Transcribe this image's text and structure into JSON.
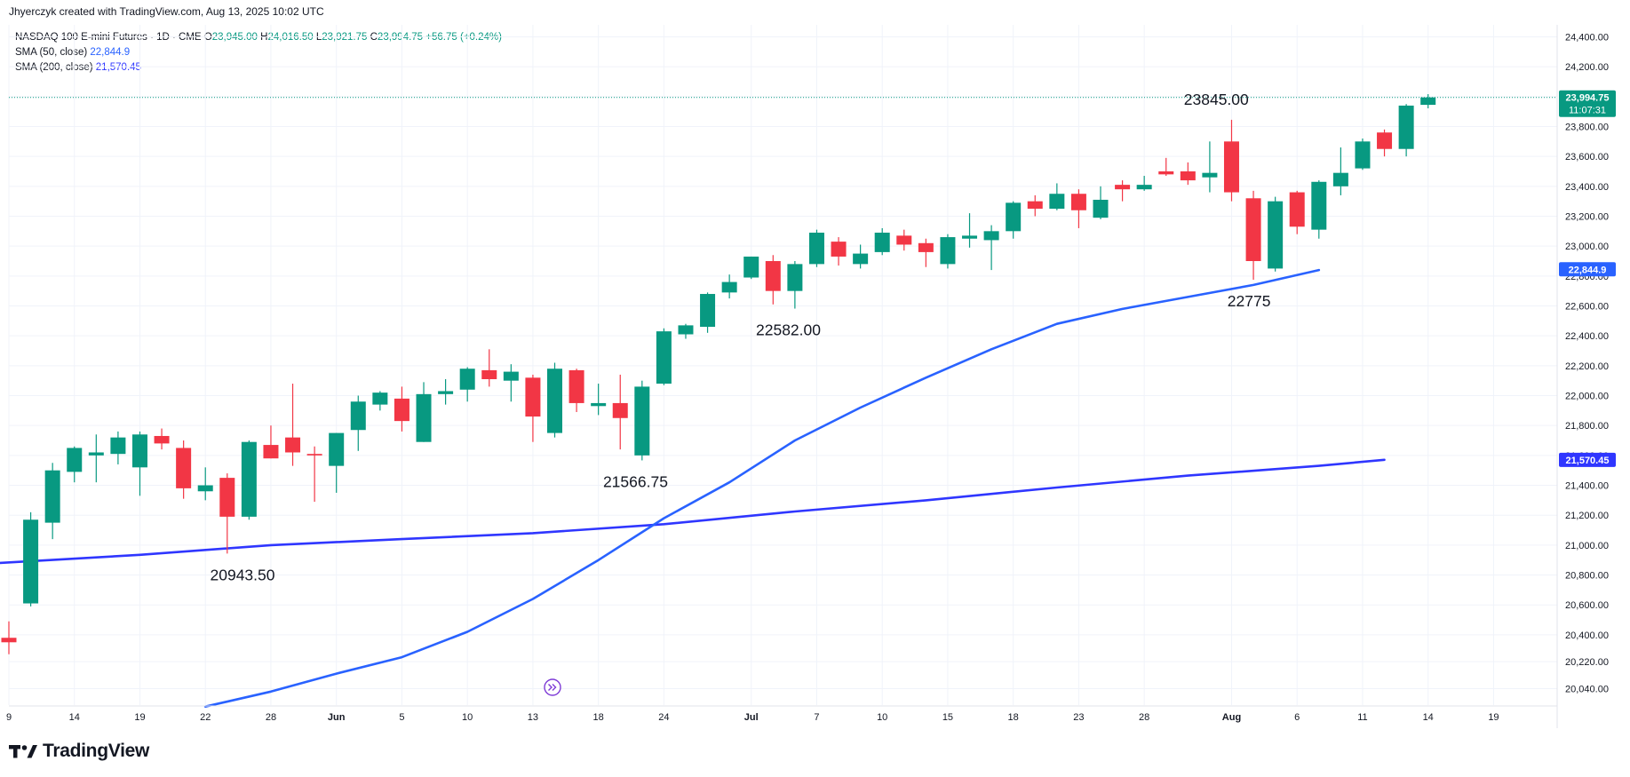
{
  "header": {
    "attribution": "Jhyerczyk created with TradingView.com, Aug 13, 2025 10:02 UTC"
  },
  "legend": {
    "symbol": "NASDAQ 100 E-mini Futures · 1D · CME",
    "o_label": "O",
    "o_value": "23,945.00",
    "h_label": "H",
    "h_value": "24,016.50",
    "l_label": "L",
    "l_value": "23,921.75",
    "c_label": "C",
    "c_value": "23,994.75",
    "change": "+56.75 (+0.24%)",
    "sma50_label": "SMA (50, close)",
    "sma50_value": "22,844.9",
    "sma200_label": "SMA (200, close)",
    "sma200_value": "21,570.45"
  },
  "footer": {
    "brand": "TradingView"
  },
  "colors": {
    "up": "#089981",
    "down": "#f23645",
    "sma50": "#2962ff",
    "sma200": "#2f36ff",
    "grid": "#f0f3fa",
    "axis_text": "#131722"
  },
  "chart_data": {
    "type": "candlestick",
    "y_axis": {
      "position": "right",
      "ticks": [
        20040,
        20220,
        20400,
        20600,
        20800,
        21000,
        21200,
        21400,
        21600,
        21800,
        22000,
        22200,
        22400,
        22600,
        22800,
        23000,
        23200,
        23400,
        23600,
        23800,
        24000,
        24200,
        24400
      ],
      "tick_labels": [
        "20,040.00",
        "20,220.00",
        "20,400.00",
        "20,600.00",
        "20,800.00",
        "21,000.00",
        "21,200.00",
        "21,400.00",
        "21,600.00",
        "21,800.00",
        "22,000.00",
        "22,200.00",
        "22,400.00",
        "22,600.00",
        "22,800.00",
        "23,000.00",
        "23,200.00",
        "23,400.00",
        "23,600.00",
        "23,800.00",
        "24,000.00",
        "24,200.00",
        "24,400.00"
      ],
      "range": [
        19930,
        24480
      ]
    },
    "x_axis": {
      "tick_labels": [
        "9",
        "14",
        "19",
        "22",
        "28",
        "Jun",
        "5",
        "10",
        "13",
        "18",
        "24",
        "Jul",
        "7",
        "10",
        "15",
        "18",
        "23",
        "28",
        "Aug",
        "6",
        "11",
        "14",
        "19"
      ],
      "tick_slots": [
        0,
        3,
        6,
        9,
        12,
        15,
        18,
        21,
        24,
        27,
        30,
        34,
        37,
        40,
        43,
        46,
        49,
        52,
        56,
        59,
        62,
        65,
        68
      ],
      "slot_count": 74
    },
    "grid": true,
    "candles": [
      {
        "o": 20380,
        "h": 20490,
        "l": 20270,
        "c": 20350
      },
      {
        "o": 20610,
        "h": 21220,
        "l": 20590,
        "c": 21170
      },
      {
        "o": 21150,
        "h": 21550,
        "l": 21040,
        "c": 21500
      },
      {
        "o": 21490,
        "h": 21660,
        "l": 21420,
        "c": 21650
      },
      {
        "o": 21600,
        "h": 21740,
        "l": 21420,
        "c": 21620
      },
      {
        "o": 21610,
        "h": 21760,
        "l": 21540,
        "c": 21720
      },
      {
        "o": 21520,
        "h": 21760,
        "l": 21330,
        "c": 21740
      },
      {
        "o": 21730,
        "h": 21780,
        "l": 21640,
        "c": 21680
      },
      {
        "o": 21650,
        "h": 21700,
        "l": 21310,
        "c": 21380
      },
      {
        "o": 21360,
        "h": 21520,
        "l": 21300,
        "c": 21400
      },
      {
        "o": 21450,
        "h": 21480,
        "l": 20943.5,
        "c": 21190
      },
      {
        "o": 21190,
        "h": 21700,
        "l": 21170,
        "c": 21690
      },
      {
        "o": 21670,
        "h": 21800,
        "l": 21580,
        "c": 21580
      },
      {
        "o": 21720,
        "h": 22080,
        "l": 21530,
        "c": 21620
      },
      {
        "o": 21610,
        "h": 21660,
        "l": 21290,
        "c": 21600
      },
      {
        "o": 21530,
        "h": 21750,
        "l": 21350,
        "c": 21750
      },
      {
        "o": 21770,
        "h": 22000,
        "l": 21630,
        "c": 21960
      },
      {
        "o": 21940,
        "h": 22030,
        "l": 21900,
        "c": 22020
      },
      {
        "o": 21980,
        "h": 22060,
        "l": 21760,
        "c": 21830
      },
      {
        "o": 21690,
        "h": 22090,
        "l": 21690,
        "c": 22010
      },
      {
        "o": 22010,
        "h": 22110,
        "l": 21940,
        "c": 22030
      },
      {
        "o": 22040,
        "h": 22190,
        "l": 21960,
        "c": 22180
      },
      {
        "o": 22170,
        "h": 22310,
        "l": 22060,
        "c": 22110
      },
      {
        "o": 22100,
        "h": 22210,
        "l": 21960,
        "c": 22160
      },
      {
        "o": 22120,
        "h": 22140,
        "l": 21690,
        "c": 21860
      },
      {
        "o": 21750,
        "h": 22220,
        "l": 21720,
        "c": 22180
      },
      {
        "o": 22170,
        "h": 22180,
        "l": 21890,
        "c": 21950
      },
      {
        "o": 21930,
        "h": 22080,
        "l": 21870,
        "c": 21950
      },
      {
        "o": 21950,
        "h": 22140,
        "l": 21640,
        "c": 21850
      },
      {
        "o": 21600,
        "h": 22100,
        "l": 21566.75,
        "c": 22060
      },
      {
        "o": 22080,
        "h": 22450,
        "l": 22070,
        "c": 22430
      },
      {
        "o": 22410,
        "h": 22480,
        "l": 22380,
        "c": 22470
      },
      {
        "o": 22460,
        "h": 22690,
        "l": 22420,
        "c": 22680
      },
      {
        "o": 22690,
        "h": 22810,
        "l": 22650,
        "c": 22760
      },
      {
        "o": 22790,
        "h": 22930,
        "l": 22780,
        "c": 22930
      },
      {
        "o": 22900,
        "h": 22940,
        "l": 22610,
        "c": 22700
      },
      {
        "o": 22700,
        "h": 22900,
        "l": 22582,
        "c": 22880
      },
      {
        "o": 22880,
        "h": 23110,
        "l": 22860,
        "c": 23090
      },
      {
        "o": 23030,
        "h": 23060,
        "l": 22870,
        "c": 22930
      },
      {
        "o": 22880,
        "h": 23010,
        "l": 22850,
        "c": 22950
      },
      {
        "o": 22960,
        "h": 23120,
        "l": 22940,
        "c": 23090
      },
      {
        "o": 23070,
        "h": 23110,
        "l": 22970,
        "c": 23010
      },
      {
        "o": 23020,
        "h": 23050,
        "l": 22860,
        "c": 22960
      },
      {
        "o": 22880,
        "h": 23080,
        "l": 22850,
        "c": 23060
      },
      {
        "o": 23050,
        "h": 23220,
        "l": 22990,
        "c": 23070
      },
      {
        "o": 23040,
        "h": 23140,
        "l": 22840,
        "c": 23100
      },
      {
        "o": 23100,
        "h": 23300,
        "l": 23050,
        "c": 23290
      },
      {
        "o": 23300,
        "h": 23340,
        "l": 23200,
        "c": 23250
      },
      {
        "o": 23250,
        "h": 23420,
        "l": 23240,
        "c": 23350
      },
      {
        "o": 23350,
        "h": 23380,
        "l": 23120,
        "c": 23240
      },
      {
        "o": 23190,
        "h": 23400,
        "l": 23180,
        "c": 23310
      },
      {
        "o": 23410,
        "h": 23440,
        "l": 23300,
        "c": 23380
      },
      {
        "o": 23380,
        "h": 23470,
        "l": 23370,
        "c": 23410
      },
      {
        "o": 23500,
        "h": 23590,
        "l": 23470,
        "c": 23480
      },
      {
        "o": 23500,
        "h": 23560,
        "l": 23410,
        "c": 23440
      },
      {
        "o": 23460,
        "h": 23700,
        "l": 23360,
        "c": 23490
      },
      {
        "o": 23700,
        "h": 23845,
        "l": 23300,
        "c": 23360
      },
      {
        "o": 23320,
        "h": 23370,
        "l": 22775,
        "c": 22900
      },
      {
        "o": 22850,
        "h": 23330,
        "l": 22830,
        "c": 23300
      },
      {
        "o": 23360,
        "h": 23370,
        "l": 23080,
        "c": 23130
      },
      {
        "o": 23110,
        "h": 23440,
        "l": 23050,
        "c": 23430
      },
      {
        "o": 23400,
        "h": 23660,
        "l": 23340,
        "c": 23490
      },
      {
        "o": 23520,
        "h": 23720,
        "l": 23510,
        "c": 23700
      },
      {
        "o": 23760,
        "h": 23780,
        "l": 23600,
        "c": 23650
      },
      {
        "o": 23650,
        "h": 23950,
        "l": 23600,
        "c": 23940
      },
      {
        "o": 23945,
        "h": 24016.5,
        "l": 23921.75,
        "c": 23994.75
      }
    ],
    "sma50": {
      "label": "SMA (50, close)",
      "points": [
        [
          9,
          19920
        ],
        [
          12,
          20020
        ],
        [
          15,
          20140
        ],
        [
          18,
          20250
        ],
        [
          21,
          20420
        ],
        [
          24,
          20640
        ],
        [
          27,
          20900
        ],
        [
          30,
          21180
        ],
        [
          33,
          21420
        ],
        [
          36,
          21700
        ],
        [
          39,
          21920
        ],
        [
          42,
          22120
        ],
        [
          45,
          22310
        ],
        [
          48,
          22480
        ],
        [
          51,
          22580
        ],
        [
          54,
          22660
        ],
        [
          57,
          22740
        ],
        [
          60,
          22840
        ]
      ],
      "last": 22844.9
    },
    "sma200": {
      "label": "SMA (200, close)",
      "points": [
        [
          -0.5,
          20880
        ],
        [
          6,
          20935
        ],
        [
          12,
          21000
        ],
        [
          18,
          21040
        ],
        [
          24,
          21080
        ],
        [
          30,
          21140
        ],
        [
          36,
          21225
        ],
        [
          42,
          21300
        ],
        [
          48,
          21385
        ],
        [
          54,
          21465
        ],
        [
          60,
          21530
        ],
        [
          63,
          21570.45
        ]
      ],
      "last": 21570.45
    },
    "annotations": [
      {
        "text": "20943.50",
        "slot": 10.7,
        "price": 20943.5
      },
      {
        "text": "21566.75",
        "slot": 28.7,
        "price": 21566.75
      },
      {
        "text": "22582.00",
        "slot": 35.7,
        "price": 22582
      },
      {
        "text": "23845.00",
        "slot": 55.3,
        "price": 23845
      },
      {
        "text": "22775",
        "slot": 56.8,
        "price": 22775
      }
    ],
    "price_labels": [
      {
        "text": "23,994.75",
        "price": 23994.75,
        "color": "#089981",
        "countdown": "11:07:31"
      },
      {
        "text": "22,844.9",
        "price": 22844.9,
        "color": "#2962ff"
      },
      {
        "text": "21,570.45",
        "price": 21570.45,
        "color": "#2f36ff"
      }
    ]
  }
}
